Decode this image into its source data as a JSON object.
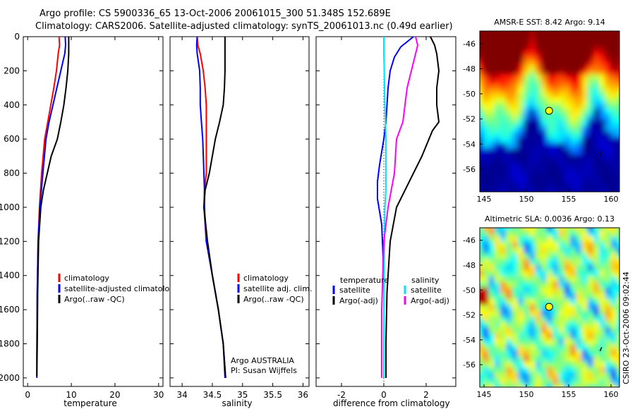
{
  "header": {
    "line1": "Argo profile: CS 5900336_65 13-Oct-2006 20061015_300 51.348S 152.689E",
    "line2": "Climatology: CARS2006. Satellite-adjusted climatology: synTS_20061013.nc (0.49d earlier)"
  },
  "side_label": "CSIRO 23-Oct-2006 09:02:44",
  "colors": {
    "climatology": "#ff0000",
    "satellite": "#0000ff",
    "argo": "#000000",
    "sal_sat": "#00e5ff",
    "sal_argo": "#ff00ff"
  },
  "chart_data": [
    {
      "type": "line",
      "xlabel": "temperature",
      "xlim": [
        -1,
        31
      ],
      "xticks": [
        "0",
        "10",
        "20",
        "30"
      ],
      "xtick_values": [
        0,
        10,
        20,
        30
      ],
      "ylim": [
        0,
        2050
      ],
      "yticks": [
        "0",
        "200",
        "400",
        "600",
        "800",
        "1000",
        "1200",
        "1400",
        "1600",
        "1800",
        "2000"
      ],
      "ytick_values": [
        0,
        200,
        400,
        600,
        800,
        1000,
        1200,
        1400,
        1600,
        1800,
        2000
      ],
      "legend": {
        "placement": "lower-right",
        "entries": [
          {
            "label": "climatology",
            "color": "#ff0000"
          },
          {
            "label": "satellite-adjusted climatology",
            "color": "#0000ff"
          },
          {
            "label": "Argo(..raw -QC)",
            "color": "#000000"
          }
        ]
      },
      "series": [
        {
          "color": "#ff0000",
          "x": [
            7.2,
            7.3,
            7.0,
            6.6,
            6.0,
            5.3,
            4.6,
            3.9,
            3.2,
            2.7,
            2.4,
            2.2,
            2.1
          ],
          "y": [
            0,
            50,
            100,
            200,
            300,
            400,
            500,
            600,
            800,
            1000,
            1200,
            1500,
            1900
          ]
        },
        {
          "color": "#0000ff",
          "x": [
            8.6,
            8.7,
            8.5,
            7.6,
            6.7,
            5.8,
            4.9,
            4.2,
            3.5,
            2.8,
            2.4,
            2.2,
            2.1,
            2.1
          ],
          "y": [
            0,
            50,
            100,
            200,
            300,
            400,
            500,
            600,
            800,
            1000,
            1200,
            1500,
            1900,
            2000
          ]
        },
        {
          "color": "#000000",
          "x": [
            9.4,
            9.4,
            9.4,
            9.2,
            8.8,
            8.3,
            7.6,
            6.8,
            5.4,
            3.6,
            3.0,
            2.5,
            2.3,
            2.2,
            2.1
          ],
          "y": [
            0,
            50,
            100,
            200,
            300,
            400,
            500,
            600,
            700,
            900,
            1000,
            1200,
            1500,
            1800,
            1990
          ]
        }
      ]
    },
    {
      "type": "line",
      "xlabel": "salinity",
      "xlim": [
        33.8,
        36.1
      ],
      "xticks": [
        "34",
        "34.5",
        "35",
        "35.5",
        "36"
      ],
      "xtick_values": [
        34,
        34.5,
        35,
        35.5,
        36
      ],
      "ylim": [
        0,
        2050
      ],
      "yticks": [],
      "ytick_values": [
        0,
        200,
        400,
        600,
        800,
        1000,
        1200,
        1400,
        1600,
        1800,
        2000
      ],
      "legend": {
        "placement": "lower-right",
        "entries": [
          {
            "label": "climatology",
            "color": "#ff0000"
          },
          {
            "label": "satellite adj. clim.",
            "color": "#0000ff"
          },
          {
            "label": "Argo(..raw -QC)",
            "color": "#000000"
          }
        ]
      },
      "annotations": [
        "Argo AUSTRALIA",
        "PI: Susan Wijffels"
      ],
      "series": [
        {
          "color": "#ff0000",
          "x": [
            34.25,
            34.26,
            34.3,
            34.35,
            34.38,
            34.4,
            34.4,
            34.4,
            34.4,
            34.37,
            34.36,
            34.4,
            34.5,
            34.6,
            34.68,
            34.72
          ],
          "y": [
            0,
            50,
            100,
            200,
            300,
            400,
            500,
            600,
            800,
            900,
            1000,
            1200,
            1400,
            1600,
            1800,
            2000
          ]
        },
        {
          "color": "#0000ff",
          "x": [
            34.25,
            34.24,
            34.25,
            34.29,
            34.3,
            34.3,
            34.32,
            34.34,
            34.36,
            34.37,
            34.37,
            34.4,
            34.5,
            34.6,
            34.68,
            34.71
          ],
          "y": [
            0,
            50,
            100,
            200,
            300,
            400,
            500,
            600,
            800,
            900,
            1000,
            1200,
            1400,
            1600,
            1800,
            2000
          ]
        },
        {
          "color": "#000000",
          "x": [
            34.71,
            34.71,
            34.71,
            34.71,
            34.7,
            34.68,
            34.62,
            34.55,
            34.45,
            34.38,
            34.36,
            34.42,
            34.5,
            34.6,
            34.68,
            34.72
          ],
          "y": [
            0,
            50,
            100,
            200,
            300,
            400,
            500,
            600,
            800,
            900,
            1000,
            1200,
            1400,
            1600,
            1800,
            2000
          ]
        }
      ]
    },
    {
      "type": "line",
      "xlabel": "difference from climatology",
      "xlim": [
        -3.2,
        3.4
      ],
      "xticks": [
        "-2",
        "0",
        "2"
      ],
      "xtick_values": [
        -2,
        0,
        2
      ],
      "ylim": [
        0,
        2050
      ],
      "yticks": [],
      "ytick_values": [
        0,
        200,
        400,
        600,
        800,
        1000,
        1200,
        1400,
        1600,
        1800,
        2000
      ],
      "zero_line": true,
      "legend": {
        "placement": "lower",
        "columns": [
          {
            "heading": "temperature",
            "entries": [
              {
                "label": "satellite",
                "color": "#0000ff"
              },
              {
                "label": "Argo(-adj)",
                "color": "#000000"
              }
            ]
          },
          {
            "heading": "salinity",
            "entries": [
              {
                "label": "satellite",
                "color": "#00e5ff"
              },
              {
                "label": "Argo(-adj)",
                "color": "#ff00ff"
              }
            ]
          }
        ]
      },
      "series": [
        {
          "name": "temperature satellite",
          "color": "#0000ff",
          "x": [
            1.4,
            0.8,
            0.5,
            0.3,
            0.2,
            0.15,
            0.1,
            0.0,
            -0.2,
            -0.3,
            -0.3,
            -0.1,
            0.0,
            0.0
          ],
          "y": [
            0,
            60,
            120,
            200,
            300,
            400,
            500,
            600,
            750,
            850,
            950,
            1100,
            1400,
            2000
          ]
        },
        {
          "name": "temperature Argo(-adj)",
          "color": "#000000",
          "x": [
            2.2,
            2.4,
            2.5,
            2.6,
            2.5,
            2.5,
            2.6,
            2.3,
            1.8,
            1.2,
            0.6,
            0.3,
            0.15,
            0.1,
            0.1
          ],
          "y": [
            0,
            50,
            100,
            200,
            300,
            400,
            500,
            550,
            700,
            850,
            1000,
            1200,
            1500,
            1800,
            2000
          ]
        },
        {
          "name": "salinity satellite",
          "color": "#00e5ff",
          "x": [
            0.0,
            0.0,
            0.02,
            0.05,
            0.1,
            0.1,
            0.1,
            0.05,
            0.0,
            0.0
          ],
          "y": [
            0,
            100,
            200,
            400,
            600,
            800,
            900,
            1000,
            1500,
            2000
          ]
        },
        {
          "name": "salinity Argo(-adj)",
          "color": "#ff00ff",
          "x": [
            1.5,
            1.6,
            1.5,
            1.3,
            1.1,
            1.0,
            0.9,
            0.6,
            0.5,
            0.2,
            0.0,
            -0.1,
            -0.1
          ],
          "y": [
            0,
            50,
            100,
            200,
            300,
            400,
            500,
            600,
            800,
            1000,
            1200,
            1600,
            2000
          ]
        }
      ]
    },
    {
      "type": "heatmap",
      "title": "AMSR-E SST: 8.42 Argo: 9.14",
      "xlim": [
        144.5,
        161
      ],
      "ylim": [
        -57.8,
        -45
      ],
      "xticks": [
        "145",
        "150",
        "155",
        "160"
      ],
      "xtick_values": [
        145,
        150,
        155,
        160
      ],
      "yticks": [
        "-46",
        "-48",
        "-50",
        "-52",
        "-54",
        "-56"
      ],
      "ytick_values": [
        -46,
        -48,
        -50,
        -52,
        -54,
        -56
      ],
      "marker": {
        "lon": 152.69,
        "lat": -51.35
      },
      "colormap": "jet"
    },
    {
      "type": "heatmap",
      "title": "Altimetric SLA: 0.0036 Argo: 0.13",
      "xlim": [
        144.5,
        161
      ],
      "ylim": [
        -57.8,
        -45
      ],
      "xticks": [
        "145",
        "150",
        "155",
        "160"
      ],
      "xtick_values": [
        145,
        150,
        155,
        160
      ],
      "yticks": [
        "-46",
        "-48",
        "-50",
        "-52",
        "-54",
        "-56"
      ],
      "ytick_values": [
        -46,
        -48,
        -50,
        -52,
        -54,
        -56
      ],
      "marker": {
        "lon": 152.69,
        "lat": -51.35
      },
      "colormap": "jet"
    }
  ]
}
